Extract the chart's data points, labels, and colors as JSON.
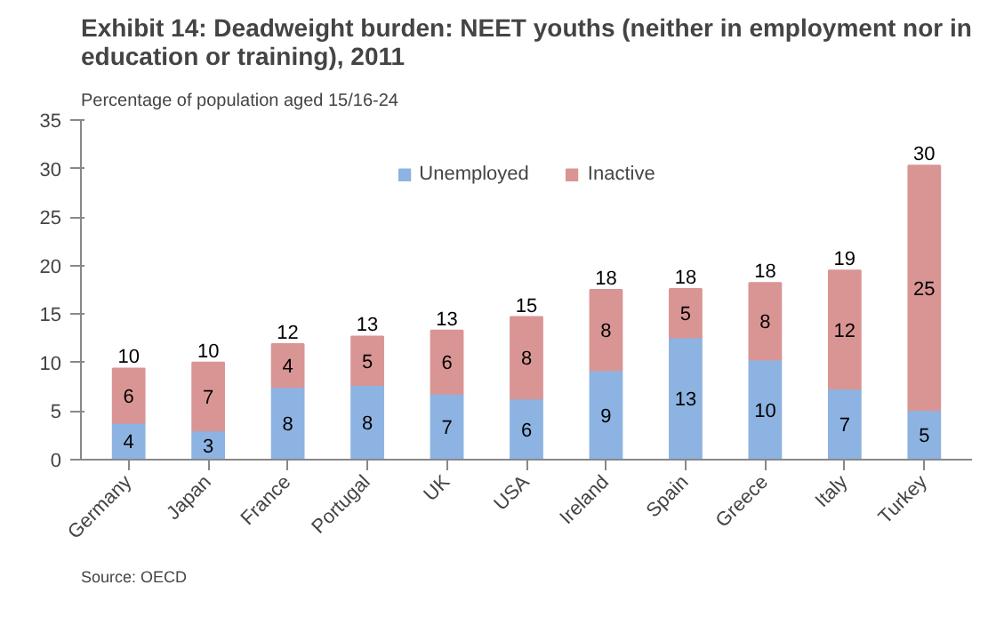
{
  "chart_data": {
    "type": "bar",
    "stacked": true,
    "title": "Exhibit 14: Deadweight burden: NEET youths (neither in employment nor in education or training), 2011",
    "subtitle": "Percentage of population aged 15/16-24",
    "categories": [
      "Germany",
      "Japan",
      "France",
      "Portugal",
      "UK",
      "USA",
      "Ireland",
      "Spain",
      "Greece",
      "Italy",
      "Turkey"
    ],
    "series": [
      {
        "name": "Unemployed",
        "color": "#8db3e2",
        "values": [
          3.8,
          3.0,
          7.5,
          7.7,
          6.8,
          6.3,
          9.2,
          12.6,
          10.3,
          7.3,
          5.1
        ],
        "value_labels": [
          "4",
          "3",
          "8",
          "8",
          "7",
          "6",
          "9",
          "13",
          "10",
          "7",
          "5"
        ]
      },
      {
        "name": "Inactive",
        "color": "#d99594",
        "values": [
          5.6,
          7.0,
          4.4,
          5.0,
          6.5,
          8.4,
          8.3,
          5.0,
          7.9,
          12.2,
          25.2
        ],
        "value_labels": [
          "6",
          "7",
          "4",
          "5",
          "6",
          "8",
          "8",
          "5",
          "8",
          "12",
          "25"
        ]
      }
    ],
    "totals": [
      "10",
      "10",
      "12",
      "13",
      "13",
      "15",
      "18",
      "18",
      "18",
      "19",
      "30"
    ],
    "ylim": [
      0,
      35
    ],
    "yticks": [
      0,
      5,
      10,
      15,
      20,
      25,
      30,
      35
    ],
    "grid": false,
    "legend": "top",
    "annotations": [
      "Source: OECD"
    ]
  }
}
